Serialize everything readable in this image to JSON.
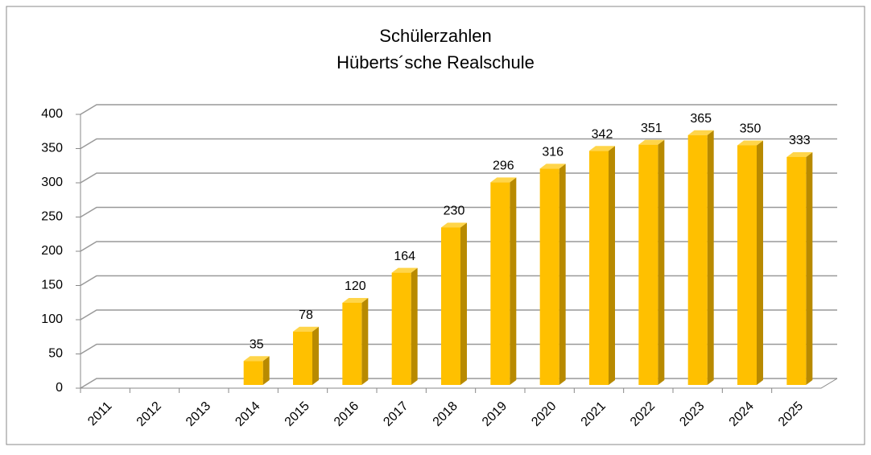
{
  "chart_data": {
    "type": "bar3d",
    "title": "Schülerzahlen",
    "subtitle": "Hüberts´sche Realschule",
    "categories": [
      "2011",
      "2012",
      "2013",
      "2014",
      "2015",
      "2016",
      "2017",
      "2018",
      "2019",
      "2020",
      "2021",
      "2022",
      "2023",
      "2024",
      "2025"
    ],
    "values": [
      null,
      null,
      null,
      35,
      78,
      120,
      164,
      230,
      296,
      316,
      342,
      351,
      365,
      350,
      333
    ],
    "color": "#ffc000",
    "ylim": [
      0,
      400
    ],
    "yticks": [
      0,
      50,
      100,
      150,
      200,
      250,
      300,
      350,
      400
    ],
    "grid": true
  }
}
